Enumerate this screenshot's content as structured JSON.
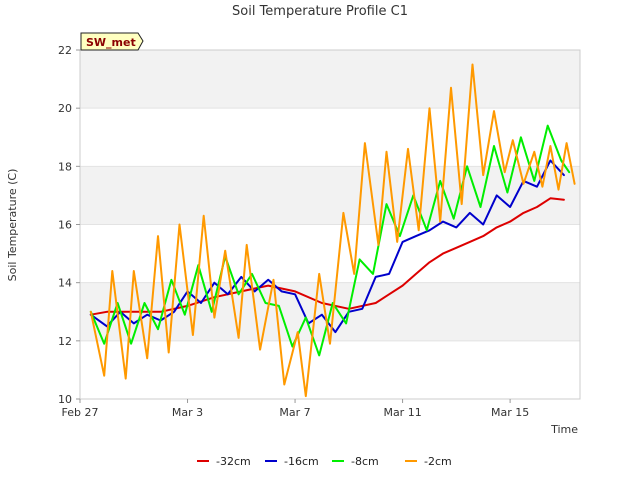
{
  "chart_data": {
    "type": "line",
    "title": "Soil Temperature Profile C1",
    "badge": "SW_met",
    "xlabel": "Time",
    "ylabel": "Soil Temperature (C)",
    "x_ticks": [
      "Feb 27",
      "Mar 3",
      "Mar 7",
      "Mar 11",
      "Mar 15"
    ],
    "x_tick_days": [
      0,
      4,
      8,
      12,
      16
    ],
    "xlim": [
      0,
      18.6
    ],
    "ylim": [
      10,
      22
    ],
    "y_ticks": [
      10,
      12,
      14,
      16,
      18,
      20,
      22
    ],
    "grid": true,
    "band_color": "#f2f2f2",
    "legend_position": "bottom",
    "series": [
      {
        "name": "-32cm",
        "color": "#dd0000",
        "x": [
          0.4,
          1,
          2,
          3,
          4,
          5,
          6,
          7,
          8,
          9,
          10,
          11,
          11.5,
          12,
          12.5,
          13,
          13.5,
          14,
          14.5,
          15,
          15.5,
          16,
          16.5,
          17,
          17.5,
          18
        ],
        "y": [
          12.9,
          13.0,
          13.0,
          13.0,
          13.2,
          13.5,
          13.7,
          13.9,
          13.7,
          13.3,
          13.1,
          13.3,
          13.6,
          13.9,
          14.3,
          14.7,
          15.0,
          15.2,
          15.4,
          15.6,
          15.9,
          16.1,
          16.4,
          16.6,
          16.9,
          16.85
        ]
      },
      {
        "name": "-16cm",
        "color": "#0000cc",
        "x": [
          0.4,
          1,
          1.5,
          2,
          2.5,
          3,
          3.5,
          4,
          4.5,
          5,
          5.5,
          6,
          6.5,
          7,
          7.5,
          8,
          8.5,
          9,
          9.5,
          10,
          10.5,
          11,
          11.5,
          12,
          12.5,
          13,
          13.5,
          14,
          14.5,
          15,
          15.5,
          16,
          16.5,
          17,
          17.5,
          18
        ],
        "y": [
          12.9,
          12.5,
          13.0,
          12.6,
          12.9,
          12.7,
          13.0,
          13.7,
          13.3,
          14.0,
          13.6,
          14.2,
          13.7,
          14.1,
          13.7,
          13.6,
          12.6,
          12.9,
          12.3,
          13.0,
          13.1,
          14.2,
          14.3,
          15.4,
          15.6,
          15.8,
          16.1,
          15.9,
          16.4,
          16.0,
          17.0,
          16.6,
          17.5,
          17.3,
          18.2,
          17.7
        ]
      },
      {
        "name": "-8cm",
        "color": "#00ee00",
        "x": [
          0.4,
          0.9,
          1.4,
          1.9,
          2.4,
          2.9,
          3.4,
          3.9,
          4.4,
          4.9,
          5.4,
          5.9,
          6.4,
          6.9,
          7.4,
          7.9,
          8.4,
          8.9,
          9.4,
          9.9,
          10.4,
          10.9,
          11.4,
          11.9,
          12.4,
          12.9,
          13.4,
          13.9,
          14.4,
          14.9,
          15.4,
          15.9,
          16.4,
          16.9,
          17.4,
          17.9,
          18.2
        ],
        "y": [
          13.0,
          11.9,
          13.3,
          11.9,
          13.3,
          12.4,
          14.1,
          12.9,
          14.6,
          13.0,
          14.9,
          13.6,
          14.3,
          13.3,
          13.2,
          11.8,
          12.8,
          11.5,
          13.3,
          12.6,
          14.8,
          14.3,
          16.7,
          15.6,
          17.0,
          15.8,
          17.5,
          16.2,
          18.0,
          16.6,
          18.7,
          17.1,
          19.0,
          17.5,
          19.4,
          18.2,
          17.8
        ]
      },
      {
        "name": "-2cm",
        "color": "#ff9900",
        "x": [
          0.4,
          0.9,
          1.2,
          1.7,
          2.0,
          2.5,
          2.9,
          3.3,
          3.7,
          4.2,
          4.6,
          5.0,
          5.4,
          5.9,
          6.2,
          6.7,
          7.2,
          7.6,
          8.1,
          8.4,
          8.9,
          9.3,
          9.8,
          10.2,
          10.6,
          11.1,
          11.4,
          11.8,
          12.2,
          12.6,
          13.0,
          13.4,
          13.8,
          14.2,
          14.6,
          15.0,
          15.4,
          15.8,
          16.1,
          16.5,
          16.9,
          17.2,
          17.5,
          17.8,
          18.1,
          18.4
        ],
        "y": [
          13.0,
          10.8,
          14.4,
          10.7,
          14.4,
          11.4,
          15.6,
          11.6,
          16.0,
          12.2,
          16.3,
          12.8,
          15.1,
          12.1,
          15.3,
          11.7,
          14.1,
          10.5,
          12.3,
          10.1,
          14.3,
          11.9,
          16.4,
          14.3,
          18.8,
          15.3,
          18.5,
          15.4,
          18.6,
          15.8,
          20.0,
          16.1,
          20.7,
          16.7,
          21.5,
          17.7,
          19.9,
          17.8,
          18.9,
          17.4,
          18.5,
          17.3,
          18.7,
          17.2,
          18.8,
          17.4
        ]
      }
    ]
  }
}
